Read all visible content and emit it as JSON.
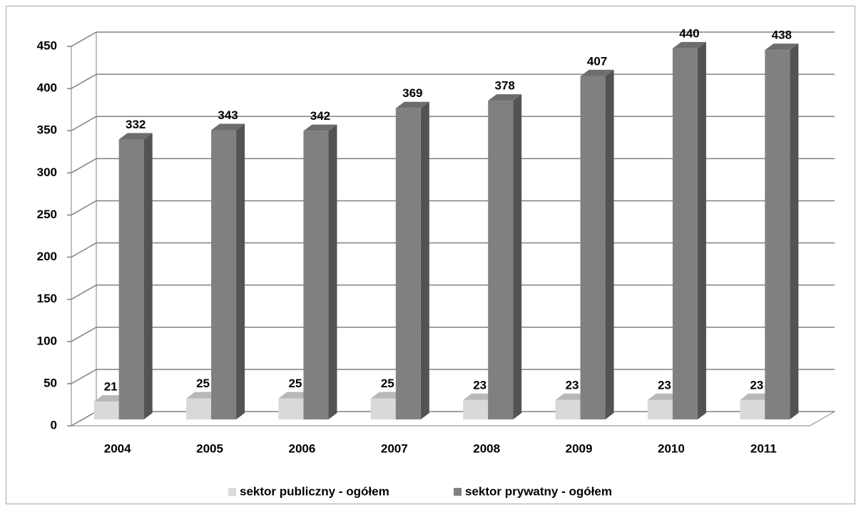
{
  "chart_data": {
    "type": "bar",
    "categories": [
      "2004",
      "2005",
      "2006",
      "2007",
      "2008",
      "2009",
      "2010",
      "2011"
    ],
    "series": [
      {
        "name": "sektor publiczny - ogółem",
        "color": "#d9d9d9",
        "values": [
          21,
          25,
          25,
          25,
          23,
          23,
          23,
          23
        ]
      },
      {
        "name": "sektor prywatny - ogółem",
        "color": "#808080",
        "values": [
          332,
          343,
          342,
          369,
          378,
          407,
          440,
          438
        ]
      }
    ],
    "ylim": [
      0,
      450
    ],
    "yticks": [
      0,
      50,
      100,
      150,
      200,
      250,
      300,
      350,
      400,
      450
    ],
    "grid": true,
    "legend": "bottom",
    "data_labels": true
  }
}
